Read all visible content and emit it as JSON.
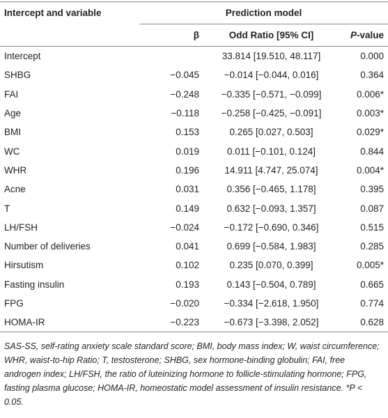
{
  "header": {
    "row1": [
      "Intercept and variable",
      "Prediction model"
    ],
    "row2": [
      "β",
      "Odd Ratio [95% CI]"
    ],
    "pvalue": [
      "P",
      "-value"
    ]
  },
  "table": {
    "rows": [
      [
        "Intercept",
        "",
        "33.814 [19.510, 48.117]",
        "0.000"
      ],
      [
        "SHBG",
        "−0.045",
        "−0.014 [−0.044, 0.016]",
        "0.364"
      ],
      [
        "FAI",
        "−0.248",
        "−0.335 [−0.571, −0.099]",
        "0.006*"
      ],
      [
        "Age",
        "−0.118",
        "−0.258 [−0.425, −0.091]",
        "0.003*"
      ],
      [
        "BMI",
        "0.153",
        "0.265 [0.027, 0.503]",
        "0.029*"
      ],
      [
        "WC",
        "0.019",
        "0.011 [−0.101, 0.124]",
        "0.844"
      ],
      [
        "WHR",
        "0.196",
        "14.911 [4.747, 25.074]",
        "0.004*"
      ],
      [
        "Acne",
        "0.031",
        "0.356 [−0.465, 1.178]",
        "0.395"
      ],
      [
        "T",
        "0.149",
        "0.632 [−0.093, 1.357]",
        "0.087"
      ],
      [
        "LH/FSH",
        "−0.024",
        "−0.172 [−0.690, 0.346]",
        "0.515"
      ],
      [
        "Number of deliveries",
        "0.041",
        "0.699 [−0.584, 1.983]",
        "0.285"
      ],
      [
        "Hirsutism",
        "0.102",
        "0.235 [0.070, 0.399]",
        "0.005*"
      ],
      [
        "Fasting insulin",
        "0.193",
        "0.143 [−0.504, 0.789]",
        "0.665"
      ],
      [
        "FPG",
        "−0.020",
        "−0.334 [−2.618, 1.950]",
        "0.774"
      ],
      [
        "HOMA-IR",
        "−0.223",
        "−0.673 [−3.398, 2.052]",
        "0.628"
      ]
    ]
  },
  "footnote": "SAS-SS, self-rating anxiety scale standard score; BMI, body mass index; W, waist circumference; WHR, waist-to-hip Ratio; T, testosterone; SHBG, sex hormone-binding globulin; FAI, free androgen index; LH/FSH, the ratio of luteinizing hormone to follicle-stimulating hormone; FPG, fasting plasma glucose; HOMA-IR, homeostatic model assessment of insulin resistance. *P < 0.05."
}
